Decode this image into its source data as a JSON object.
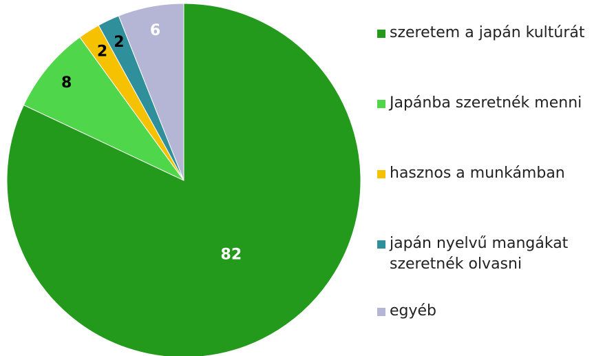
{
  "chart_data": {
    "type": "pie",
    "categories": [
      "szeretem a japán kultúrát",
      "Japánba szeretnék menni",
      "hasznos a munkámban",
      "japán nyelvű mangákat szeretnék olvasni",
      "egyéb"
    ],
    "values": [
      82,
      8,
      2,
      2,
      6
    ],
    "colors": [
      "#239a1c",
      "#4fd64a",
      "#f6c200",
      "#2f8f9a",
      "#b5b5d6"
    ],
    "label_colors": [
      "#ffffff",
      "#000000",
      "#000000",
      "#000000",
      "#ffffff"
    ],
    "legend": "right"
  }
}
